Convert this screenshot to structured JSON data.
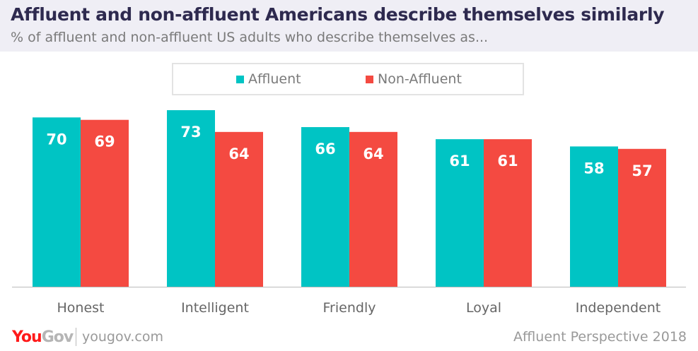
{
  "header": {
    "title": "Affluent and non-affluent Americans describe themselves similarly",
    "subtitle": "% of affluent and non-affluent US adults who describe themselves as..."
  },
  "chart_data": {
    "type": "bar",
    "categories": [
      "Honest",
      "Intelligent",
      "Friendly",
      "Loyal",
      "Independent"
    ],
    "series": [
      {
        "name": "Affluent",
        "color": "#00c4c4",
        "values": [
          70,
          73,
          66,
          61,
          58
        ]
      },
      {
        "name": "Non-Affluent",
        "color": "#f44a41",
        "values": [
          69,
          64,
          64,
          61,
          57
        ]
      }
    ],
    "ylim": [
      0,
      73
    ],
    "legend": "top-center",
    "grid": false
  },
  "footer": {
    "logo_you": "You",
    "logo_gov": "Gov",
    "site": "yougov.com",
    "source": "Affluent Perspective 2018"
  }
}
